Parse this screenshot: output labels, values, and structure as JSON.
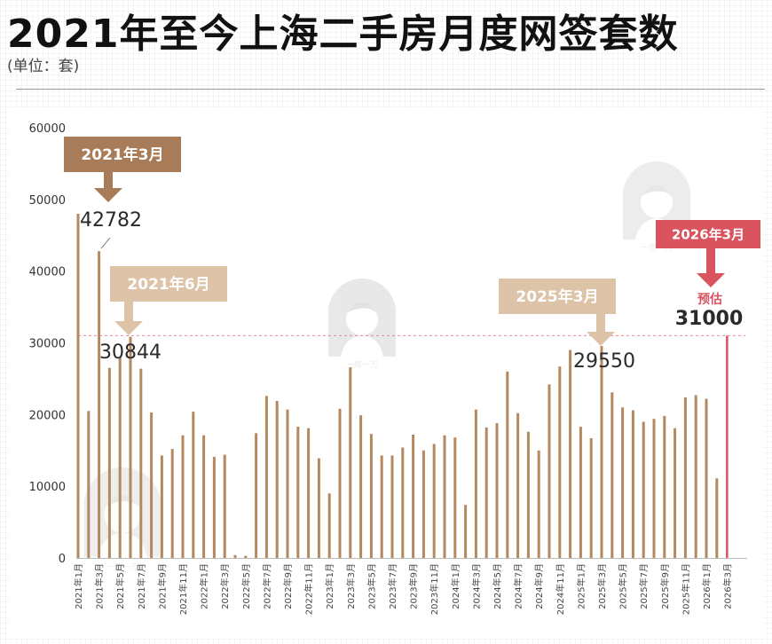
{
  "header": {
    "title": "2021年至今上海二手房月度网签套数",
    "subtitle": "(单位：套)"
  },
  "chart_data": {
    "type": "bar",
    "ylim": [
      0,
      60000
    ],
    "yticks": [
      0,
      10000,
      20000,
      30000,
      40000,
      50000,
      60000
    ],
    "reference_line": 31000,
    "categories": [
      "2021年1月",
      "2021年2月",
      "2021年3月",
      "2021年4月",
      "2021年5月",
      "2021年6月",
      "2021年7月",
      "2021年8月",
      "2021年9月",
      "2021年10月",
      "2021年11月",
      "2021年12月",
      "2022年1月",
      "2022年2月",
      "2022年3月",
      "2022年4月",
      "2022年5月",
      "2022年6月",
      "2022年7月",
      "2022年8月",
      "2022年9月",
      "2022年10月",
      "2022年11月",
      "2022年12月",
      "2023年1月",
      "2023年2月",
      "2023年3月",
      "2023年4月",
      "2023年5月",
      "2023年6月",
      "2023年7月",
      "2023年8月",
      "2023年9月",
      "2023年10月",
      "2023年11月",
      "2023年12月",
      "2024年1月",
      "2024年2月",
      "2024年3月",
      "2024年4月",
      "2024年5月",
      "2024年6月",
      "2024年7月",
      "2024年8月",
      "2024年9月",
      "2024年10月",
      "2024年11月",
      "2024年12月",
      "2025年1月",
      "2025年2月",
      "2025年3月",
      "2025年4月",
      "2025年5月",
      "2025年6月",
      "2025年7月",
      "2025年8月",
      "2025年9月",
      "2025年10月",
      "2025年11月",
      "2025年12月",
      "2026年1月",
      "2026年2月",
      "2026年3月"
    ],
    "tick_labels": [
      "2021年1月",
      "2021年3月",
      "2021年5月",
      "2021年7月",
      "2021年9月",
      "2021年11月",
      "2022年1月",
      "2022年3月",
      "2022年5月",
      "2022年7月",
      "2022年9月",
      "2022年11月",
      "2023年1月",
      "2023年3月",
      "2023年5月",
      "2023年7月",
      "2023年9月",
      "2023年11月",
      "2024年1月",
      "2024年3月",
      "2024年5月",
      "2024年7月",
      "2024年9月",
      "2024年11月",
      "2025年1月",
      "2025年3月",
      "2025年5月",
      "2025年7月",
      "2025年9月",
      "2025年11月",
      "2026年1月",
      "2026年3月"
    ],
    "values": [
      48000,
      20500,
      42782,
      26500,
      28000,
      30844,
      26400,
      20300,
      14300,
      15200,
      17100,
      20400,
      17100,
      14100,
      14400,
      400,
      300,
      17400,
      22600,
      21900,
      20700,
      18300,
      18100,
      13900,
      9000,
      20800,
      26600,
      19900,
      17300,
      14300,
      14300,
      15400,
      17200,
      15000,
      15900,
      17100,
      16800,
      7400,
      20700,
      18200,
      18800,
      26000,
      20200,
      17600,
      15000,
      24200,
      26700,
      29000,
      18300,
      16700,
      29550,
      23100,
      21000,
      20600,
      19000,
      19400,
      19800,
      18100,
      22400,
      22700,
      22200,
      11100,
      31000
    ],
    "bar_color": "#b5895f",
    "forecast_color": "#d9545f",
    "callouts": [
      {
        "label": "2021年3月",
        "value": "42782",
        "color": "#a87c58",
        "month": "2021年3月"
      },
      {
        "label": "2021年6月",
        "value": "30844",
        "color": "#ddc3a7",
        "month": "2021年6月"
      },
      {
        "label": "2025年3月",
        "value": "29550",
        "color": "#ddc3a7",
        "month": "2025年3月"
      },
      {
        "label": "2026年3月",
        "value": "31000",
        "note": "预估",
        "color": "#d9545f",
        "month": "2026年3月"
      }
    ],
    "watermark_text": "一房一万"
  }
}
